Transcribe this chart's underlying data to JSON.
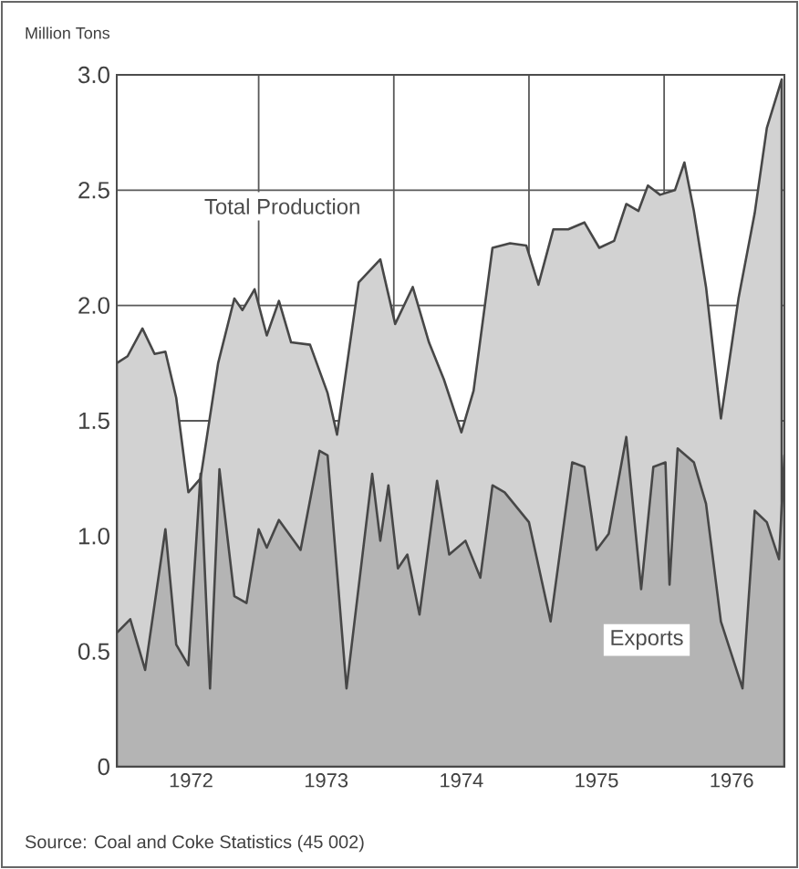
{
  "chart_data": {
    "type": "area",
    "ylabel": "Million Tons",
    "annotations": [
      "Source: Coal and Coke Statistics (45 002)"
    ],
    "series": [
      {
        "name": "Total Production",
        "color": "#d2d2d2",
        "x": [
          1971.95,
          1972.03,
          1972.14,
          1972.23,
          1972.31,
          1972.39,
          1972.48,
          1972.57,
          1972.7,
          1972.82,
          1972.88,
          1972.97,
          1973.06,
          1973.15,
          1973.24,
          1973.38,
          1973.51,
          1973.58,
          1973.74,
          1973.9,
          1974.01,
          1974.14,
          1974.26,
          1974.37,
          1974.5,
          1974.59,
          1974.73,
          1974.86,
          1974.98,
          1975.07,
          1975.18,
          1975.29,
          1975.41,
          1975.52,
          1975.63,
          1975.72,
          1975.81,
          1975.88,
          1975.97,
          1976.08,
          1976.15,
          1976.22,
          1976.31,
          1976.42,
          1976.55,
          1976.67,
          1976.76,
          1976.87
        ],
        "values": [
          1.75,
          1.78,
          1.9,
          1.79,
          1.8,
          1.6,
          1.19,
          1.25,
          1.75,
          2.03,
          1.98,
          2.07,
          1.87,
          2.02,
          1.84,
          1.83,
          1.62,
          1.44,
          2.1,
          2.2,
          1.92,
          2.08,
          1.84,
          1.68,
          1.45,
          1.63,
          2.25,
          2.27,
          2.26,
          2.09,
          2.33,
          2.33,
          2.36,
          2.25,
          2.28,
          2.44,
          2.41,
          2.52,
          2.48,
          2.5,
          2.62,
          2.41,
          2.08,
          1.51,
          2.03,
          2.4,
          2.77,
          2.98
        ]
      },
      {
        "name": "Exports",
        "color": "#b4b4b4",
        "x": [
          1971.95,
          1972.05,
          1972.16,
          1972.31,
          1972.39,
          1972.48,
          1972.57,
          1972.64,
          1972.71,
          1972.82,
          1972.91,
          1973.0,
          1973.06,
          1973.15,
          1973.31,
          1973.45,
          1973.51,
          1973.65,
          1973.84,
          1973.9,
          1973.96,
          1974.03,
          1974.1,
          1974.19,
          1974.32,
          1974.41,
          1974.53,
          1974.64,
          1974.73,
          1974.82,
          1975.0,
          1975.16,
          1975.32,
          1975.41,
          1975.5,
          1975.59,
          1975.72,
          1975.83,
          1975.92,
          1976.01,
          1976.04,
          1976.1,
          1976.22,
          1976.31,
          1976.42,
          1976.58,
          1976.67,
          1976.76,
          1976.85,
          1976.89
        ],
        "values": [
          0.58,
          0.64,
          0.42,
          1.03,
          0.53,
          0.44,
          1.27,
          0.34,
          1.29,
          0.74,
          0.71,
          1.03,
          0.95,
          1.07,
          0.94,
          1.37,
          1.35,
          0.34,
          1.27,
          0.98,
          1.22,
          0.86,
          0.92,
          0.66,
          1.24,
          0.92,
          0.98,
          0.82,
          1.22,
          1.19,
          1.06,
          0.63,
          1.32,
          1.3,
          0.94,
          1.01,
          1.43,
          0.77,
          1.3,
          1.32,
          0.79,
          1.38,
          1.32,
          1.14,
          0.63,
          0.34,
          1.11,
          1.06,
          0.9,
          1.35
        ]
      }
    ],
    "xlim": [
      1971.95,
      1976.89
    ],
    "xticks": [
      {
        "value": 1972.5,
        "label": "1972"
      },
      {
        "value": 1973,
        "label": null
      },
      {
        "value": 1973.5,
        "label": "1973"
      },
      {
        "value": 1974,
        "label": null
      },
      {
        "value": 1974.5,
        "label": "1974"
      },
      {
        "value": 1975,
        "label": null
      },
      {
        "value": 1975.5,
        "label": "1975"
      },
      {
        "value": 1976,
        "label": null
      },
      {
        "value": 1976.5,
        "label": "1976"
      }
    ],
    "ylim": [
      0,
      3.0
    ],
    "yticks": [
      0,
      0.5,
      {
        "value": 1.0,
        "label": "1.0"
      },
      {
        "value": 1.5,
        "label": "1.5"
      },
      {
        "value": 2.0,
        "label": "2.0"
      },
      {
        "value": 2.5,
        "label": "2.5"
      },
      {
        "value": 3.0,
        "label": "3.0"
      }
    ],
    "grid": true
  }
}
